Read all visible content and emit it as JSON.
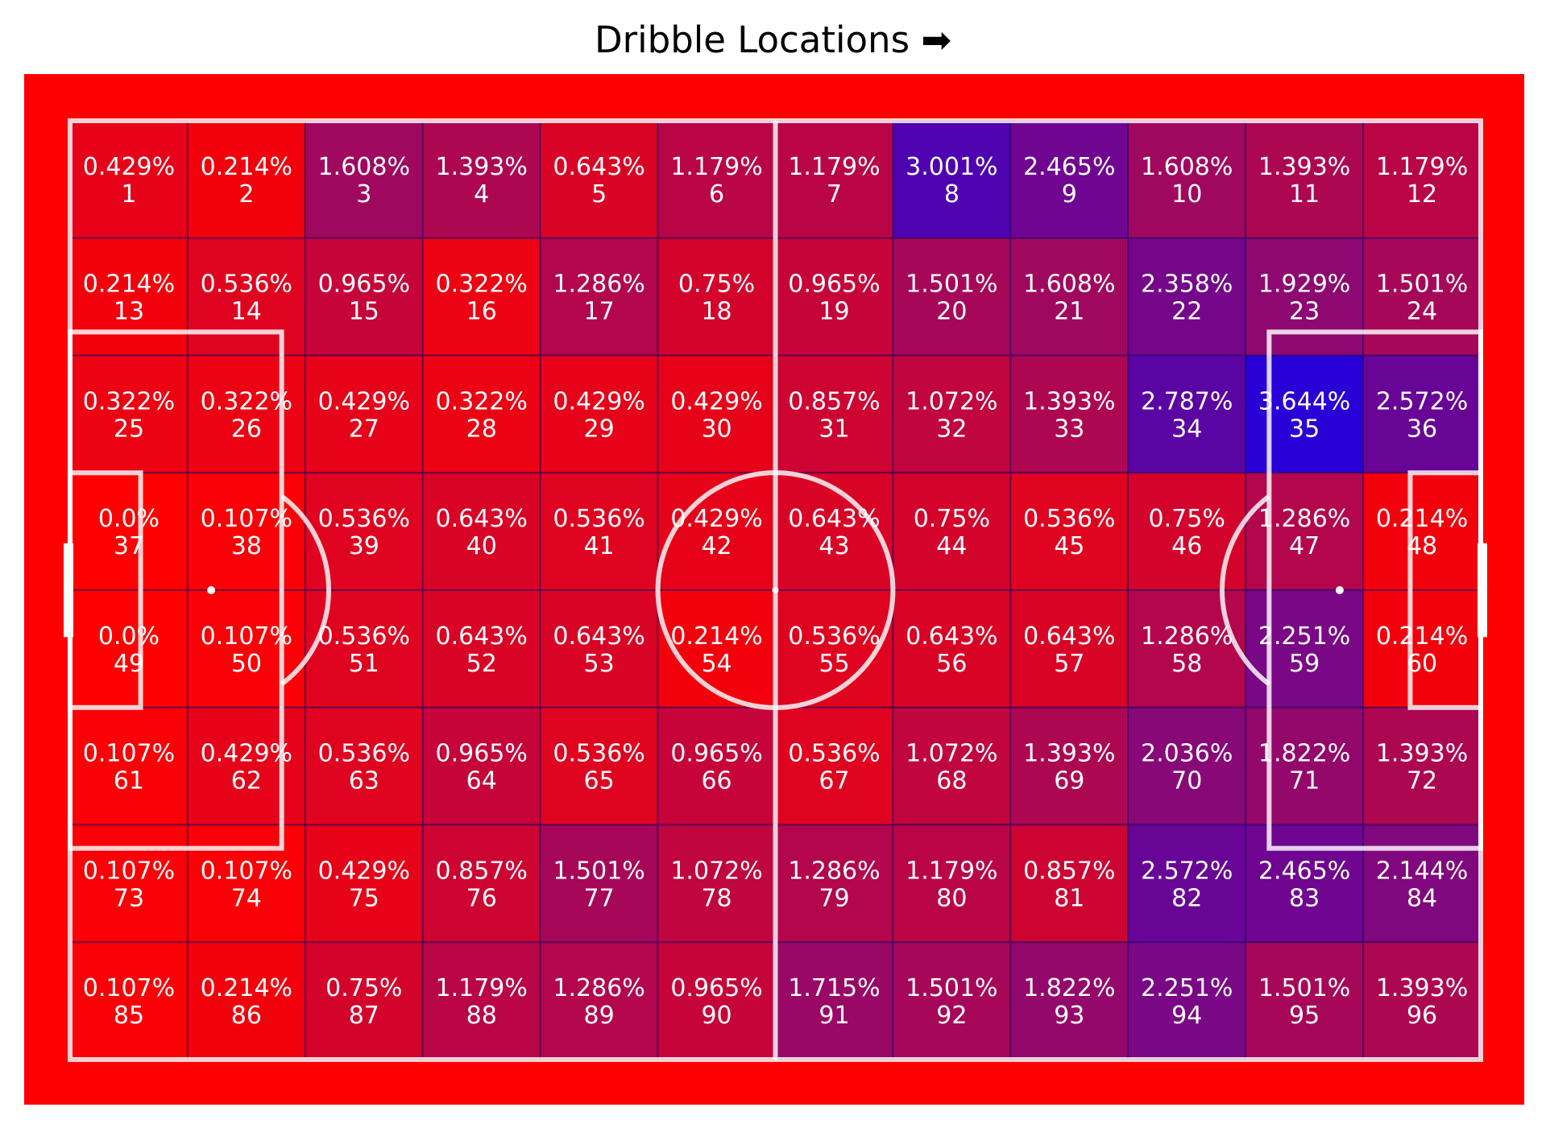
{
  "title": "Dribble Locations ➡",
  "chart_data": {
    "type": "heatmap",
    "title": "Dribble Locations ➡",
    "grid": {
      "rows": 8,
      "cols": 12
    },
    "cells": [
      {
        "id": 1,
        "pct": "0.429%"
      },
      {
        "id": 2,
        "pct": "0.214%"
      },
      {
        "id": 3,
        "pct": "1.608%"
      },
      {
        "id": 4,
        "pct": "1.393%"
      },
      {
        "id": 5,
        "pct": "0.643%"
      },
      {
        "id": 6,
        "pct": "1.179%"
      },
      {
        "id": 7,
        "pct": "1.179%"
      },
      {
        "id": 8,
        "pct": "3.001%"
      },
      {
        "id": 9,
        "pct": "2.465%"
      },
      {
        "id": 10,
        "pct": "1.608%"
      },
      {
        "id": 11,
        "pct": "1.393%"
      },
      {
        "id": 12,
        "pct": "1.179%"
      },
      {
        "id": 13,
        "pct": "0.214%"
      },
      {
        "id": 14,
        "pct": "0.536%"
      },
      {
        "id": 15,
        "pct": "0.965%"
      },
      {
        "id": 16,
        "pct": "0.322%"
      },
      {
        "id": 17,
        "pct": "1.286%"
      },
      {
        "id": 18,
        "pct": "0.75%"
      },
      {
        "id": 19,
        "pct": "0.965%"
      },
      {
        "id": 20,
        "pct": "1.501%"
      },
      {
        "id": 21,
        "pct": "1.608%"
      },
      {
        "id": 22,
        "pct": "2.358%"
      },
      {
        "id": 23,
        "pct": "1.929%"
      },
      {
        "id": 24,
        "pct": "1.501%"
      },
      {
        "id": 25,
        "pct": "0.322%"
      },
      {
        "id": 26,
        "pct": "0.322%"
      },
      {
        "id": 27,
        "pct": "0.429%"
      },
      {
        "id": 28,
        "pct": "0.322%"
      },
      {
        "id": 29,
        "pct": "0.429%"
      },
      {
        "id": 30,
        "pct": "0.429%"
      },
      {
        "id": 31,
        "pct": "0.857%"
      },
      {
        "id": 32,
        "pct": "1.072%"
      },
      {
        "id": 33,
        "pct": "1.393%"
      },
      {
        "id": 34,
        "pct": "2.787%"
      },
      {
        "id": 35,
        "pct": "3.644%"
      },
      {
        "id": 36,
        "pct": "2.572%"
      },
      {
        "id": 37,
        "pct": "0.0%"
      },
      {
        "id": 38,
        "pct": "0.107%"
      },
      {
        "id": 39,
        "pct": "0.536%"
      },
      {
        "id": 40,
        "pct": "0.643%"
      },
      {
        "id": 41,
        "pct": "0.536%"
      },
      {
        "id": 42,
        "pct": "0.429%"
      },
      {
        "id": 43,
        "pct": "0.643%"
      },
      {
        "id": 44,
        "pct": "0.75%"
      },
      {
        "id": 45,
        "pct": "0.536%"
      },
      {
        "id": 46,
        "pct": "0.75%"
      },
      {
        "id": 47,
        "pct": "1.286%"
      },
      {
        "id": 48,
        "pct": "0.214%"
      },
      {
        "id": 49,
        "pct": "0.0%"
      },
      {
        "id": 50,
        "pct": "0.107%"
      },
      {
        "id": 51,
        "pct": "0.536%"
      },
      {
        "id": 52,
        "pct": "0.643%"
      },
      {
        "id": 53,
        "pct": "0.643%"
      },
      {
        "id": 54,
        "pct": "0.214%"
      },
      {
        "id": 55,
        "pct": "0.536%"
      },
      {
        "id": 56,
        "pct": "0.643%"
      },
      {
        "id": 57,
        "pct": "0.643%"
      },
      {
        "id": 58,
        "pct": "1.286%"
      },
      {
        "id": 59,
        "pct": "2.251%"
      },
      {
        "id": 60,
        "pct": "0.214%"
      },
      {
        "id": 61,
        "pct": "0.107%"
      },
      {
        "id": 62,
        "pct": "0.429%"
      },
      {
        "id": 63,
        "pct": "0.536%"
      },
      {
        "id": 64,
        "pct": "0.965%"
      },
      {
        "id": 65,
        "pct": "0.536%"
      },
      {
        "id": 66,
        "pct": "0.965%"
      },
      {
        "id": 67,
        "pct": "0.536%"
      },
      {
        "id": 68,
        "pct": "1.072%"
      },
      {
        "id": 69,
        "pct": "1.393%"
      },
      {
        "id": 70,
        "pct": "2.036%"
      },
      {
        "id": 71,
        "pct": "1.822%"
      },
      {
        "id": 72,
        "pct": "1.393%"
      },
      {
        "id": 73,
        "pct": "0.107%"
      },
      {
        "id": 74,
        "pct": "0.107%"
      },
      {
        "id": 75,
        "pct": "0.429%"
      },
      {
        "id": 76,
        "pct": "0.857%"
      },
      {
        "id": 77,
        "pct": "1.501%"
      },
      {
        "id": 78,
        "pct": "1.072%"
      },
      {
        "id": 79,
        "pct": "1.286%"
      },
      {
        "id": 80,
        "pct": "1.179%"
      },
      {
        "id": 81,
        "pct": "0.857%"
      },
      {
        "id": 82,
        "pct": "2.572%"
      },
      {
        "id": 83,
        "pct": "2.465%"
      },
      {
        "id": 84,
        "pct": "2.144%"
      },
      {
        "id": 85,
        "pct": "0.107%"
      },
      {
        "id": 86,
        "pct": "0.214%"
      },
      {
        "id": 87,
        "pct": "0.75%"
      },
      {
        "id": 88,
        "pct": "1.179%"
      },
      {
        "id": 89,
        "pct": "1.286%"
      },
      {
        "id": 90,
        "pct": "0.965%"
      },
      {
        "id": 91,
        "pct": "1.715%"
      },
      {
        "id": 92,
        "pct": "1.501%"
      },
      {
        "id": 93,
        "pct": "1.822%"
      },
      {
        "id": 94,
        "pct": "2.251%"
      },
      {
        "id": 95,
        "pct": "1.501%"
      },
      {
        "id": 96,
        "pct": "1.393%"
      }
    ],
    "value_range": [
      0,
      3.644
    ],
    "colormap": {
      "low": "#ff0000",
      "high": "#0000ff"
    },
    "pitch": {
      "background": "#ff0000",
      "line_color": "#ffffff"
    }
  }
}
